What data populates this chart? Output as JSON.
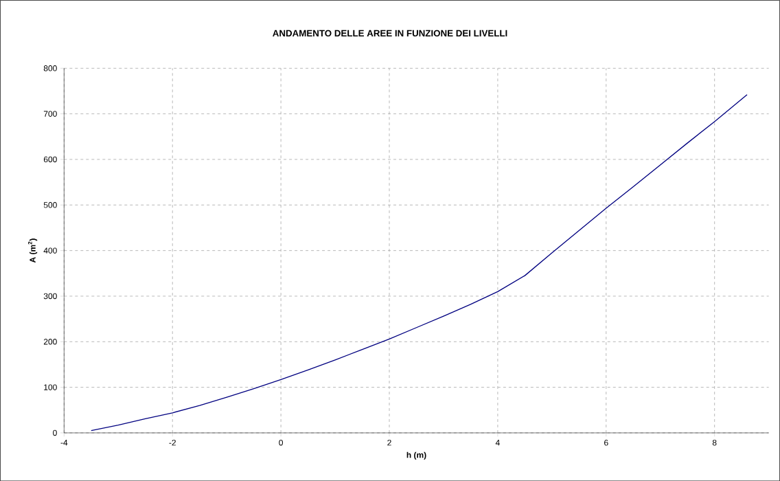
{
  "chart_data": {
    "type": "line",
    "title": "ANDAMENTO DELLE AREE IN FUNZIONE DEI LIVELLI",
    "xlabel": "h (m)",
    "ylabel": "A (m$^{2}$)",
    "x": [
      -3.5,
      -3,
      -2.5,
      -2,
      -1.5,
      -1,
      -0.5,
      0,
      0.5,
      1,
      1.5,
      2,
      2.5,
      3,
      3.5,
      4,
      4.5,
      5,
      5.5,
      6,
      6.5,
      7,
      7.5,
      8,
      8.6
    ],
    "series": [
      {
        "color": "#000080",
        "values": [
          5,
          17,
          31,
          44,
          60,
          78,
          97,
          117,
          138,
          160,
          183,
          206,
          231,
          256,
          282,
          310,
          345,
          395,
          444,
          493,
          540,
          588,
          636,
          683,
          742
        ]
      }
    ],
    "xlim": [
      -4,
      9
    ],
    "ylim": [
      0,
      800
    ],
    "xticks": [
      -4,
      -2,
      0,
      2,
      4,
      6,
      8
    ],
    "yticks": [
      0,
      100,
      200,
      300,
      400,
      500,
      600,
      700,
      800
    ],
    "grid": true,
    "marker": "none",
    "line_style": "solid"
  }
}
